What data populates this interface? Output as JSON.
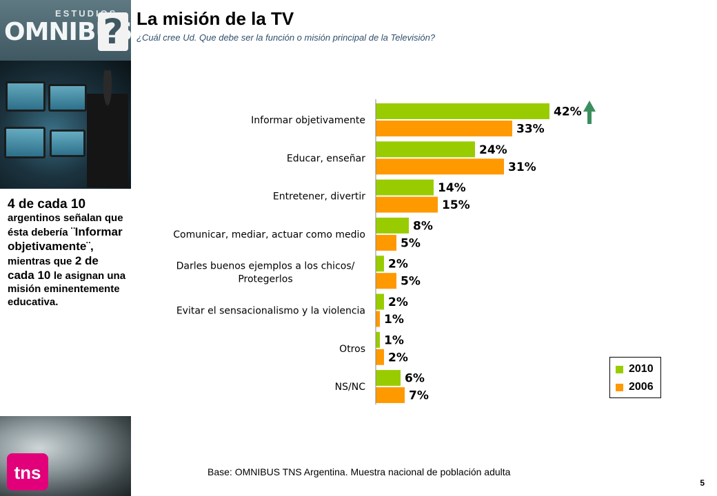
{
  "branding": {
    "estudios": "ESTUDIOS",
    "omnibus": "OMNIBUS",
    "qmark": "?",
    "tns": "tns"
  },
  "header": {
    "title": "La misión de la TV",
    "subtitle": "¿Cuál cree Ud. Que debe ser la función o misión principal de la Televisión?"
  },
  "sidebar_text": {
    "line1": "4 de cada 10",
    "line2": "argentinos señalan que ésta debería",
    "line3": "¨Informar objetivamente¨,",
    "line4": "mientras que",
    "line5": "2 de cada 10",
    "line6": "le asignan una misión eminentemente educativa."
  },
  "footer": {
    "base": "Base: OMNIBUS TNS Argentina. Muestra nacional de población adulta",
    "page_number": "5"
  },
  "colors": {
    "series_2010": "#99cc00",
    "series_2006": "#ff9900",
    "arrow": "#3a8f5c"
  },
  "chart_data": {
    "type": "bar",
    "orientation": "horizontal",
    "title": "",
    "xlabel": "",
    "ylabel": "",
    "xlim": [
      0,
      50
    ],
    "grid": false,
    "legend_position": "bottom-right",
    "categories": [
      "Informar objetivamente",
      "Educar, enseñar",
      "Entretener, divertir",
      "Comunicar, mediar, actuar como medio",
      "Darles buenos ejemplos a los chicos/ Protegerlos",
      "Evitar el sensacionalismo y la violencia",
      "Otros",
      "NS/NC"
    ],
    "category_lines": [
      [
        "Informar objetivamente"
      ],
      [
        "Educar, enseñar"
      ],
      [
        "Entretener, divertir"
      ],
      [
        "Comunicar, mediar, actuar como medio"
      ],
      [
        "Darles buenos ejemplos a los chicos/",
        "Protegerlos"
      ],
      [
        "Evitar el sensacionalismo y la violencia"
      ],
      [
        "Otros"
      ],
      [
        "NS/NC"
      ]
    ],
    "series": [
      {
        "name": "2010",
        "values": [
          42,
          24,
          14,
          8,
          2,
          2,
          1,
          6
        ],
        "labels": [
          "42%",
          "24%",
          "14%",
          "8%",
          "2%",
          "2%",
          "1%",
          "6%"
        ]
      },
      {
        "name": "2006",
        "values": [
          33,
          31,
          15,
          5,
          5,
          1,
          2,
          7
        ],
        "labels": [
          "33%",
          "31%",
          "15%",
          "5%",
          "5%",
          "1%",
          "2%",
          "7%"
        ]
      }
    ],
    "annotations": [
      {
        "type": "up-arrow",
        "category": "Informar objetivamente"
      }
    ]
  }
}
